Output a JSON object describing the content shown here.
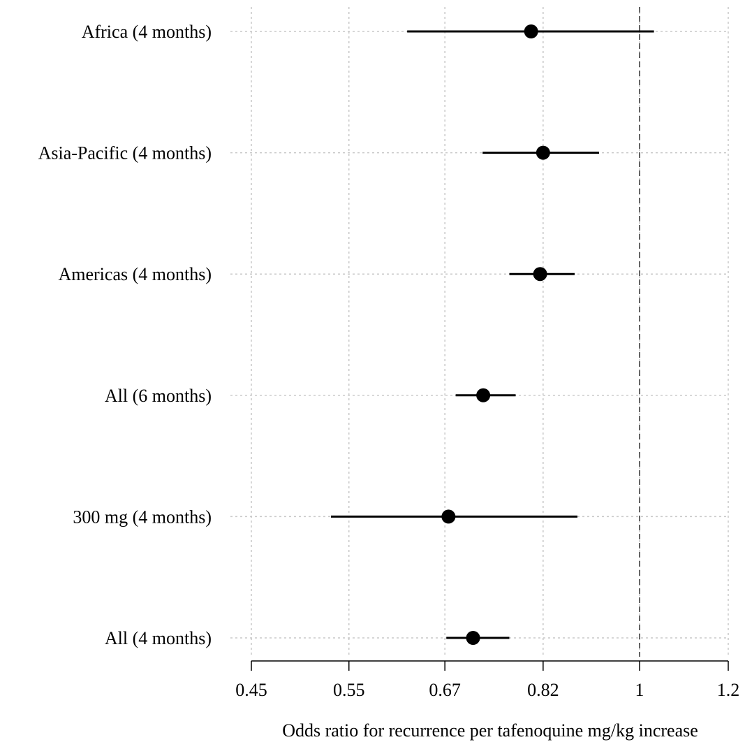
{
  "chart_data": {
    "type": "forest",
    "xlabel": "Odds ratio for recurrence per tafenoquine mg/kg increase",
    "x_scale": "log",
    "xlim": [
      0.45,
      1.2
    ],
    "x_ticks": [
      0.45,
      0.55,
      0.67,
      0.82,
      1,
      1.2
    ],
    "x_tick_labels": [
      "0.45",
      "0.55",
      "0.67",
      "0.82",
      "1",
      "1.2"
    ],
    "reference_line": 1,
    "grid": true,
    "rows": [
      {
        "label": "Africa (4 months)",
        "estimate": 0.8,
        "lower": 0.62,
        "upper": 1.03
      },
      {
        "label": "Asia-Pacific (4 months)",
        "estimate": 0.82,
        "lower": 0.724,
        "upper": 0.92
      },
      {
        "label": "Americas (4 months)",
        "estimate": 0.815,
        "lower": 0.765,
        "upper": 0.875
      },
      {
        "label": "All (6 months)",
        "estimate": 0.725,
        "lower": 0.685,
        "upper": 0.775
      },
      {
        "label": "300 mg (4 months)",
        "estimate": 0.675,
        "lower": 0.53,
        "upper": 0.88
      },
      {
        "label": "All (4 months)",
        "estimate": 0.71,
        "lower": 0.672,
        "upper": 0.765
      }
    ]
  }
}
